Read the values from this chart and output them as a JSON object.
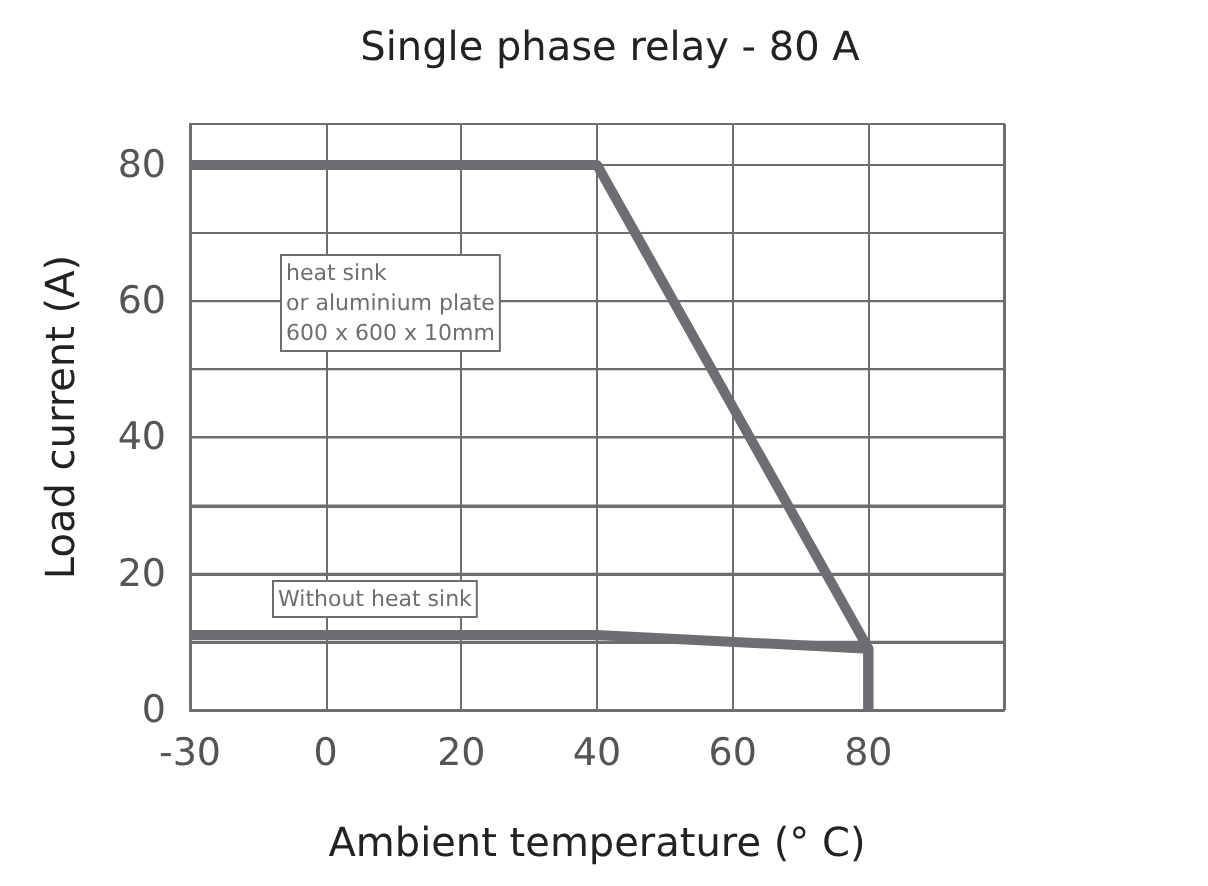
{
  "chart_data": {
    "type": "line",
    "title": "Single phase relay - 80 A",
    "xlabel": "Ambient temperature (° C)",
    "ylabel": "Load current (A)",
    "categories": [
      "-30",
      "0",
      "20",
      "40",
      "60",
      "80",
      null
    ],
    "series": [
      {
        "color": "#6d6e71",
        "x": [
          "-30",
          "40",
          "80",
          "80"
        ],
        "values": [
          80,
          80,
          9,
          0
        ]
      },
      {
        "color": "#6d6e71",
        "x": [
          "-30",
          "40",
          "80",
          "80"
        ],
        "values": [
          11,
          11,
          9,
          0
        ]
      }
    ],
    "ylim": [
      0,
      86
    ],
    "yticks": [
      0,
      {
        "value": 10,
        "label": null
      },
      20,
      {
        "value": 30,
        "label": null
      },
      40,
      {
        "value": 50,
        "label": null
      },
      60,
      {
        "value": 70,
        "label": null
      },
      80
    ],
    "grid": true,
    "marker": "none",
    "line_style": "solid",
    "annotations": [
      "heat sink\nor aluminium plate\n600 x 600 x 10mm",
      "Without heat sink"
    ]
  }
}
